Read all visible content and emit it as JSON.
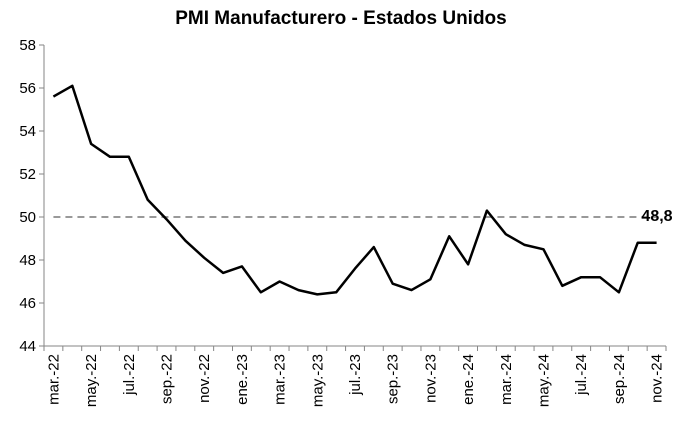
{
  "chart_data": {
    "type": "line",
    "title": "PMI Manufacturero - Estados Unidos",
    "xlabel": "",
    "ylabel": "",
    "ylim": [
      44,
      58
    ],
    "yticks": [
      44,
      46,
      48,
      50,
      52,
      54,
      56,
      58
    ],
    "grid": false,
    "x": [
      "mar.-22",
      "abr.-22",
      "may.-22",
      "jun.-22",
      "jul.-22",
      "ago.-22",
      "sep.-22",
      "oct.-22",
      "nov.-22",
      "dic.-22",
      "ene.-23",
      "feb.-23",
      "mar.-23",
      "abr.-23",
      "may.-23",
      "jun.-23",
      "jul.-23",
      "ago.-23",
      "sep.-23",
      "oct.-23",
      "nov.-23",
      "dic.-23",
      "ene.-24",
      "feb.-24",
      "mar.-24",
      "abr.-24",
      "may.-24",
      "jun.-24",
      "jul.-24",
      "ago.-24",
      "sep.-24",
      "oct.-24",
      "nov.-24"
    ],
    "x_tick_labels": [
      "mar.-22",
      "may.-22",
      "jul.-22",
      "sep.-22",
      "nov.-22",
      "ene.-23",
      "mar.-23",
      "may.-23",
      "jul.-23",
      "sep.-23",
      "nov.-23",
      "ene.-24",
      "mar.-24",
      "may.-24",
      "jul.-24",
      "sep.-24",
      "nov.-24"
    ],
    "series": [
      {
        "values": [
          55.6,
          56.1,
          53.4,
          52.8,
          52.8,
          50.8,
          49.9,
          48.9,
          48.1,
          47.4,
          47.7,
          46.5,
          47.0,
          46.6,
          46.4,
          46.5,
          47.6,
          48.6,
          46.9,
          46.6,
          47.1,
          49.1,
          47.8,
          50.3,
          49.2,
          48.7,
          48.5,
          46.8,
          47.2,
          47.2,
          46.5,
          48.8,
          48.8
        ],
        "color": "#000000"
      }
    ],
    "reference_line": {
      "value": 50,
      "style": "dashed",
      "color": "#999999"
    },
    "end_label": "48,8"
  }
}
